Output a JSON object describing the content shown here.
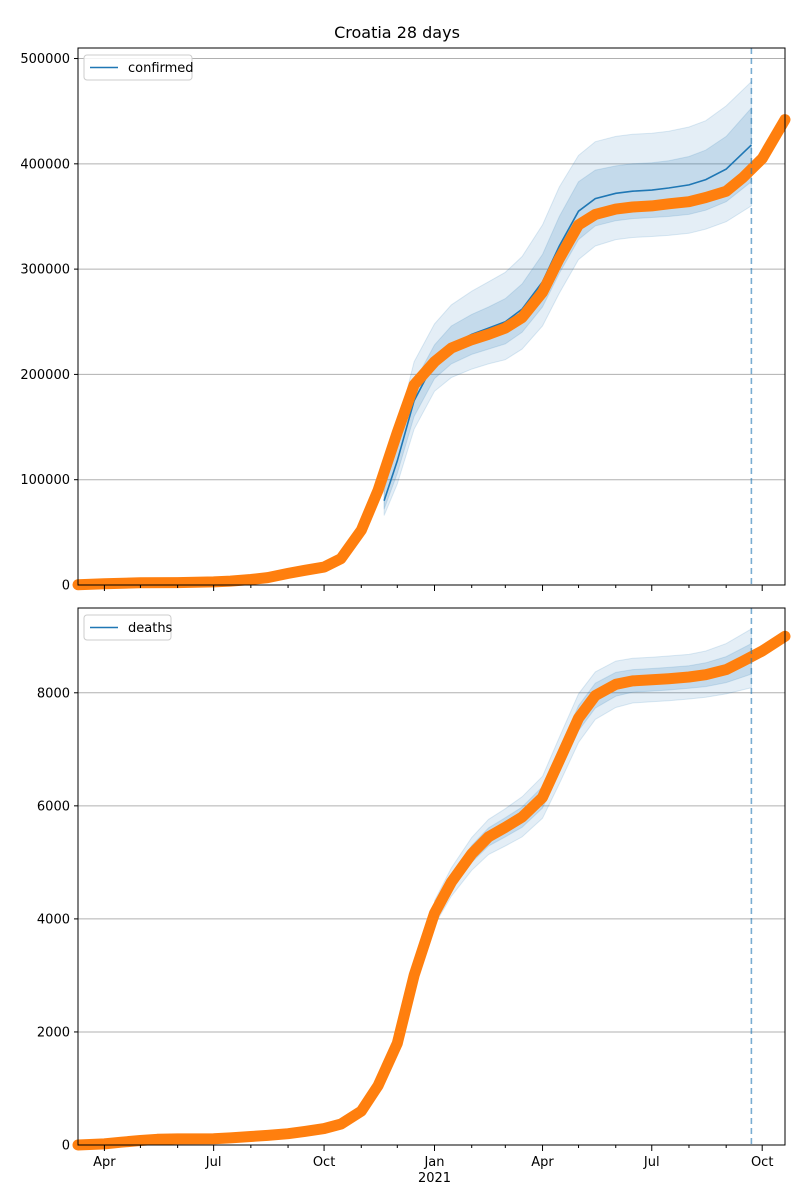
{
  "colors": {
    "model": "#1f77b4",
    "observed": "#ff7f0e",
    "band": "#1f77b4",
    "grid": "#b0b0b0",
    "cutoff": "#1f77b4"
  },
  "chart_data": [
    {
      "type": "line",
      "title": "Croatia 28 days",
      "xlabel": "",
      "ylabel": "",
      "x_range": [
        "2020-03-10",
        "2021-10-20"
      ],
      "ylim": [
        0,
        510000
      ],
      "y_ticks": [
        0,
        100000,
        200000,
        300000,
        400000,
        500000
      ],
      "y_tick_labels": [
        "0",
        "100000",
        "200000",
        "300000",
        "400000",
        "500000"
      ],
      "grid": "horizontal",
      "legend": {
        "position": "top-left",
        "entries": [
          "confirmed"
        ]
      },
      "cutoff_date": "2021-09-22",
      "series": [
        {
          "name": "confirmed",
          "role": "model",
          "x": [
            "2020-11-20",
            "2020-12-01",
            "2020-12-15",
            "2021-01-01",
            "2021-01-15",
            "2021-02-01",
            "2021-02-15",
            "2021-03-01",
            "2021-03-15",
            "2021-04-01",
            "2021-04-15",
            "2021-05-01",
            "2021-05-15",
            "2021-06-01",
            "2021-06-15",
            "2021-07-01",
            "2021-07-15",
            "2021-08-01",
            "2021-08-15",
            "2021-09-01",
            "2021-09-22"
          ],
          "values": [
            80000,
            118000,
            175000,
            212000,
            228000,
            238000,
            244000,
            250000,
            262000,
            288000,
            322000,
            355000,
            367000,
            372000,
            374000,
            375000,
            377000,
            380000,
            385000,
            395000,
            418000
          ],
          "lower_inner": [
            72000,
            106000,
            160000,
            196000,
            210000,
            219000,
            224000,
            229000,
            240000,
            264000,
            296000,
            328000,
            341000,
            346000,
            348000,
            349000,
            350000,
            352000,
            356000,
            364000,
            383000
          ],
          "upper_inner": [
            90000,
            132000,
            192000,
            228000,
            246000,
            257000,
            264000,
            272000,
            286000,
            314000,
            350000,
            383000,
            394000,
            398000,
            400000,
            401000,
            403000,
            407000,
            413000,
            426000,
            453000
          ],
          "lower_outer": [
            66000,
            96000,
            148000,
            184000,
            197000,
            205000,
            210000,
            214000,
            224000,
            246000,
            277000,
            309000,
            322000,
            328000,
            330000,
            331000,
            332000,
            334000,
            338000,
            345000,
            360000
          ],
          "upper_outer": [
            102000,
            148000,
            212000,
            248000,
            266000,
            279000,
            288000,
            297000,
            312000,
            342000,
            378000,
            408000,
            421000,
            426000,
            428000,
            429000,
            431000,
            435000,
            441000,
            455000,
            478000
          ]
        },
        {
          "name": "observed",
          "role": "observed",
          "x": [
            "2020-03-10",
            "2020-04-01",
            "2020-05-01",
            "2020-06-01",
            "2020-07-01",
            "2020-07-15",
            "2020-08-01",
            "2020-08-15",
            "2020-09-01",
            "2020-09-15",
            "2020-10-01",
            "2020-10-15",
            "2020-11-01",
            "2020-11-15",
            "2020-12-01",
            "2020-12-15",
            "2021-01-01",
            "2021-01-15",
            "2021-02-01",
            "2021-02-15",
            "2021-03-01",
            "2021-03-15",
            "2021-04-01",
            "2021-04-15",
            "2021-05-01",
            "2021-05-15",
            "2021-06-01",
            "2021-06-15",
            "2021-07-01",
            "2021-07-15",
            "2021-08-01",
            "2021-08-15",
            "2021-09-01",
            "2021-09-15",
            "2021-10-01",
            "2021-10-20"
          ],
          "values": [
            300,
            1200,
            2100,
            2250,
            2900,
            3700,
            5200,
            7000,
            11000,
            14000,
            17000,
            25000,
            52000,
            90000,
            145000,
            190000,
            212000,
            225000,
            233000,
            238000,
            244000,
            254000,
            278000,
            310000,
            342000,
            352000,
            357000,
            359000,
            360000,
            362000,
            364000,
            368000,
            374000,
            387000,
            405000,
            442000
          ]
        }
      ]
    },
    {
      "type": "line",
      "title": "",
      "xlabel": "",
      "ylabel": "",
      "x_range": [
        "2020-03-10",
        "2021-10-20"
      ],
      "ylim": [
        0,
        9500
      ],
      "y_ticks": [
        0,
        2000,
        4000,
        6000,
        8000
      ],
      "y_tick_labels": [
        "0",
        "2000",
        "4000",
        "6000",
        "8000"
      ],
      "x_tick_labels": [
        "Apr",
        "Jul",
        "Oct",
        "Jan",
        "Apr",
        "Jul",
        "Oct"
      ],
      "x_year_label": "2021",
      "grid": "horizontal",
      "legend": {
        "position": "top-left",
        "entries": [
          "deaths"
        ]
      },
      "cutoff_date": "2021-09-22",
      "series": [
        {
          "name": "deaths",
          "role": "model",
          "x": [
            "2021-01-01",
            "2021-01-15",
            "2021-02-01",
            "2021-02-15",
            "2021-03-01",
            "2021-03-15",
            "2021-04-01",
            "2021-04-15",
            "2021-05-01",
            "2021-05-15",
            "2021-06-01",
            "2021-06-15",
            "2021-07-01",
            "2021-07-15",
            "2021-08-01",
            "2021-08-15",
            "2021-09-01",
            "2021-09-22"
          ],
          "values": [
            4100,
            4650,
            5150,
            5450,
            5620,
            5800,
            6150,
            6800,
            7550,
            7950,
            8150,
            8210,
            8230,
            8250,
            8280,
            8320,
            8410,
            8600
          ],
          "lower_inner": [
            3990,
            4520,
            5000,
            5290,
            5450,
            5620,
            5960,
            6590,
            7330,
            7730,
            7940,
            8010,
            8030,
            8050,
            8080,
            8110,
            8180,
            8330
          ],
          "upper_inner": [
            4210,
            4780,
            5300,
            5610,
            5790,
            5980,
            6340,
            7010,
            7770,
            8170,
            8360,
            8410,
            8430,
            8450,
            8480,
            8530,
            8640,
            8870
          ],
          "lower_outer": [
            3890,
            4400,
            4860,
            5140,
            5290,
            5450,
            5780,
            6390,
            7120,
            7530,
            7740,
            7820,
            7840,
            7860,
            7890,
            7920,
            7980,
            8090
          ],
          "upper_outer": [
            4320,
            4900,
            5440,
            5760,
            5950,
            6160,
            6520,
            7210,
            7980,
            8370,
            8560,
            8610,
            8630,
            8650,
            8680,
            8740,
            8870,
            9130
          ]
        },
        {
          "name": "observed",
          "role": "observed",
          "x": [
            "2020-03-10",
            "2020-04-01",
            "2020-04-15",
            "2020-05-01",
            "2020-05-15",
            "2020-06-01",
            "2020-07-01",
            "2020-07-15",
            "2020-08-01",
            "2020-08-15",
            "2020-09-01",
            "2020-09-15",
            "2020-10-01",
            "2020-10-15",
            "2020-11-01",
            "2020-11-15",
            "2020-12-01",
            "2020-12-15",
            "2021-01-01",
            "2021-01-15",
            "2021-02-01",
            "2021-02-15",
            "2021-03-01",
            "2021-03-15",
            "2021-04-01",
            "2021-04-15",
            "2021-05-01",
            "2021-05-15",
            "2021-06-01",
            "2021-06-15",
            "2021-07-01",
            "2021-07-15",
            "2021-08-01",
            "2021-08-15",
            "2021-09-01",
            "2021-09-15",
            "2021-10-01",
            "2021-10-20"
          ],
          "values": [
            0,
            20,
            50,
            80,
            100,
            108,
            112,
            125,
            150,
            170,
            200,
            240,
            290,
            370,
            600,
            1050,
            1800,
            3000,
            4100,
            4650,
            5150,
            5450,
            5620,
            5800,
            6150,
            6800,
            7550,
            7950,
            8150,
            8210,
            8230,
            8250,
            8280,
            8320,
            8410,
            8560,
            8740,
            9000
          ]
        }
      ]
    }
  ]
}
